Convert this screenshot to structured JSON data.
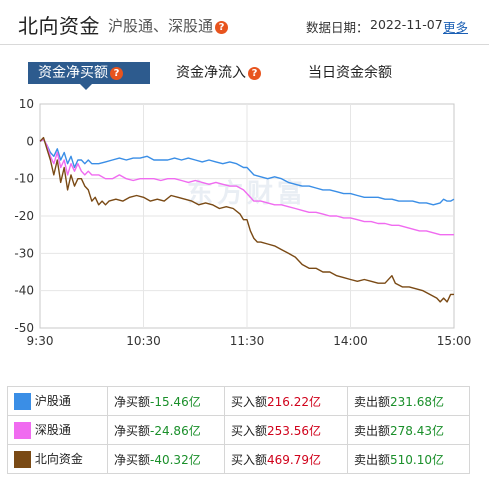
{
  "header": {
    "title": "北向资金",
    "subtitle": "沪股通、深股通",
    "date_label": "数据日期：",
    "date_value": "2022-11-07",
    "more_label": "更多"
  },
  "tabs": [
    {
      "label": "资金净买额",
      "active": true,
      "has_help": true
    },
    {
      "label": "资金净流入",
      "active": false,
      "has_help": true
    },
    {
      "label": "当日资金余额",
      "active": false,
      "has_help": false
    }
  ],
  "chart_data": {
    "type": "line",
    "y_ticks": [
      "10",
      "0",
      "-10",
      "-20",
      "-30",
      "-40",
      "-50"
    ],
    "x_ticks": [
      "9:30",
      "10:30",
      "11:30",
      "14:00",
      "15:00"
    ],
    "ylim": [
      -50,
      10
    ],
    "grid": true,
    "watermark": "东方财富",
    "x_index_max": 240,
    "series": [
      {
        "name": "沪股通",
        "color": "#3a8ee6",
        "points": [
          [
            0,
            0
          ],
          [
            2,
            0.5
          ],
          [
            4,
            -1
          ],
          [
            6,
            -3
          ],
          [
            8,
            -4
          ],
          [
            10,
            -2
          ],
          [
            12,
            -5
          ],
          [
            14,
            -3
          ],
          [
            16,
            -6
          ],
          [
            18,
            -4
          ],
          [
            20,
            -7
          ],
          [
            22,
            -5
          ],
          [
            24,
            -5
          ],
          [
            26,
            -6
          ],
          [
            28,
            -5
          ],
          [
            30,
            -6
          ],
          [
            34,
            -6
          ],
          [
            38,
            -5.5
          ],
          [
            42,
            -5
          ],
          [
            46,
            -4.5
          ],
          [
            50,
            -5
          ],
          [
            54,
            -4.5
          ],
          [
            58,
            -4.5
          ],
          [
            62,
            -4
          ],
          [
            66,
            -5
          ],
          [
            70,
            -5
          ],
          [
            74,
            -5
          ],
          [
            78,
            -4.5
          ],
          [
            82,
            -5
          ],
          [
            86,
            -4.5
          ],
          [
            90,
            -5
          ],
          [
            94,
            -5.5
          ],
          [
            98,
            -5
          ],
          [
            102,
            -5.5
          ],
          [
            106,
            -6
          ],
          [
            110,
            -5.5
          ],
          [
            114,
            -6
          ],
          [
            118,
            -7
          ],
          [
            120,
            -7
          ],
          [
            124,
            -9
          ],
          [
            128,
            -9.5
          ],
          [
            132,
            -10
          ],
          [
            136,
            -9.5
          ],
          [
            140,
            -10
          ],
          [
            144,
            -11
          ],
          [
            148,
            -11.5
          ],
          [
            152,
            -12
          ],
          [
            156,
            -12
          ],
          [
            160,
            -12.5
          ],
          [
            164,
            -13
          ],
          [
            168,
            -13
          ],
          [
            172,
            -13.5
          ],
          [
            176,
            -14
          ],
          [
            180,
            -14
          ],
          [
            184,
            -14.5
          ],
          [
            188,
            -15
          ],
          [
            192,
            -15
          ],
          [
            196,
            -15
          ],
          [
            200,
            -15.5
          ],
          [
            204,
            -15.5
          ],
          [
            208,
            -16
          ],
          [
            212,
            -16
          ],
          [
            216,
            -16
          ],
          [
            220,
            -16.5
          ],
          [
            224,
            -16.5
          ],
          [
            228,
            -17
          ],
          [
            232,
            -16.5
          ],
          [
            234,
            -15.5
          ],
          [
            236,
            -16
          ],
          [
            238,
            -16
          ],
          [
            240,
            -15.5
          ]
        ]
      },
      {
        "name": "深股通",
        "color": "#f06bf0",
        "points": [
          [
            0,
            0
          ],
          [
            2,
            0.5
          ],
          [
            4,
            -1
          ],
          [
            6,
            -4
          ],
          [
            8,
            -6
          ],
          [
            10,
            -3
          ],
          [
            12,
            -7
          ],
          [
            14,
            -5
          ],
          [
            16,
            -9
          ],
          [
            18,
            -6
          ],
          [
            20,
            -8
          ],
          [
            22,
            -6
          ],
          [
            24,
            -8
          ],
          [
            26,
            -9
          ],
          [
            28,
            -8
          ],
          [
            30,
            -9
          ],
          [
            34,
            -9
          ],
          [
            38,
            -10
          ],
          [
            42,
            -10
          ],
          [
            46,
            -9
          ],
          [
            50,
            -10
          ],
          [
            54,
            -10.5
          ],
          [
            58,
            -10
          ],
          [
            62,
            -10
          ],
          [
            66,
            -10
          ],
          [
            70,
            -10.5
          ],
          [
            74,
            -10
          ],
          [
            78,
            -10
          ],
          [
            82,
            -10.5
          ],
          [
            86,
            -11
          ],
          [
            90,
            -10.5
          ],
          [
            94,
            -11
          ],
          [
            98,
            -11.5
          ],
          [
            102,
            -11
          ],
          [
            106,
            -11.5
          ],
          [
            110,
            -12
          ],
          [
            114,
            -12
          ],
          [
            118,
            -13
          ],
          [
            120,
            -14
          ],
          [
            124,
            -16
          ],
          [
            128,
            -16
          ],
          [
            132,
            -16.5
          ],
          [
            136,
            -17
          ],
          [
            140,
            -17
          ],
          [
            144,
            -17.5
          ],
          [
            148,
            -18
          ],
          [
            152,
            -18.5
          ],
          [
            156,
            -19
          ],
          [
            160,
            -19
          ],
          [
            164,
            -19.5
          ],
          [
            168,
            -20
          ],
          [
            172,
            -20
          ],
          [
            176,
            -20.5
          ],
          [
            180,
            -20.5
          ],
          [
            184,
            -21
          ],
          [
            188,
            -21.5
          ],
          [
            192,
            -21.5
          ],
          [
            196,
            -22
          ],
          [
            200,
            -22
          ],
          [
            204,
            -22.5
          ],
          [
            208,
            -22.5
          ],
          [
            212,
            -23
          ],
          [
            216,
            -23.5
          ],
          [
            220,
            -24
          ],
          [
            224,
            -24
          ],
          [
            228,
            -24.5
          ],
          [
            232,
            -25
          ],
          [
            236,
            -25
          ],
          [
            240,
            -25
          ]
        ]
      },
      {
        "name": "北向资金",
        "color": "#7a4a15",
        "points": [
          [
            0,
            0
          ],
          [
            2,
            1
          ],
          [
            4,
            -2
          ],
          [
            6,
            -5
          ],
          [
            8,
            -9
          ],
          [
            10,
            -5
          ],
          [
            12,
            -11
          ],
          [
            14,
            -7
          ],
          [
            16,
            -13
          ],
          [
            18,
            -9
          ],
          [
            20,
            -12
          ],
          [
            22,
            -10
          ],
          [
            24,
            -10
          ],
          [
            26,
            -12
          ],
          [
            28,
            -13
          ],
          [
            30,
            -16
          ],
          [
            32,
            -15
          ],
          [
            34,
            -17
          ],
          [
            36,
            -16
          ],
          [
            38,
            -17
          ],
          [
            40,
            -16
          ],
          [
            44,
            -15.5
          ],
          [
            48,
            -16
          ],
          [
            52,
            -15
          ],
          [
            56,
            -14.5
          ],
          [
            60,
            -15
          ],
          [
            64,
            -16
          ],
          [
            68,
            -15.5
          ],
          [
            72,
            -16
          ],
          [
            76,
            -14.5
          ],
          [
            80,
            -15
          ],
          [
            84,
            -15.5
          ],
          [
            88,
            -16
          ],
          [
            92,
            -17
          ],
          [
            96,
            -16.5
          ],
          [
            100,
            -17
          ],
          [
            104,
            -18
          ],
          [
            108,
            -17.5
          ],
          [
            112,
            -18
          ],
          [
            116,
            -19.5
          ],
          [
            118,
            -21
          ],
          [
            120,
            -21
          ],
          [
            122,
            -24
          ],
          [
            124,
            -26
          ],
          [
            126,
            -27
          ],
          [
            128,
            -27
          ],
          [
            132,
            -27.5
          ],
          [
            136,
            -28
          ],
          [
            140,
            -29
          ],
          [
            144,
            -30
          ],
          [
            148,
            -31
          ],
          [
            152,
            -33
          ],
          [
            156,
            -34
          ],
          [
            160,
            -34
          ],
          [
            164,
            -35
          ],
          [
            168,
            -35
          ],
          [
            172,
            -36
          ],
          [
            176,
            -36.5
          ],
          [
            180,
            -37
          ],
          [
            184,
            -37.5
          ],
          [
            188,
            -37
          ],
          [
            192,
            -37.5
          ],
          [
            196,
            -38
          ],
          [
            200,
            -38
          ],
          [
            204,
            -36
          ],
          [
            206,
            -38
          ],
          [
            210,
            -39
          ],
          [
            214,
            -39
          ],
          [
            218,
            -39.5
          ],
          [
            222,
            -40
          ],
          [
            226,
            -41
          ],
          [
            230,
            -42
          ],
          [
            232,
            -43
          ],
          [
            234,
            -42
          ],
          [
            236,
            -43
          ],
          [
            238,
            -41
          ],
          [
            240,
            -41
          ]
        ]
      }
    ]
  },
  "legend": [
    {
      "name": "沪股通",
      "color": "#3a8ee6",
      "net_label": "净买额",
      "net_value": "-15.46亿",
      "buy_label": "买入额",
      "buy_value": "216.22亿",
      "sell_label": "卖出额",
      "sell_value": "231.68亿"
    },
    {
      "name": "深股通",
      "color": "#f06bf0",
      "net_label": "净买额",
      "net_value": "-24.86亿",
      "buy_label": "买入额",
      "buy_value": "253.56亿",
      "sell_label": "卖出额",
      "sell_value": "278.43亿"
    },
    {
      "name": "北向资金",
      "color": "#7a4a15",
      "net_label": "净买额",
      "net_value": "-40.32亿",
      "buy_label": "买入额",
      "buy_value": "469.79亿",
      "sell_label": "卖出额",
      "sell_value": "510.10亿"
    }
  ],
  "colors": {
    "up": "#d0021b",
    "down": "#1a8f2a",
    "tab_active": "#2d5b8e",
    "help": "#e8541e"
  }
}
